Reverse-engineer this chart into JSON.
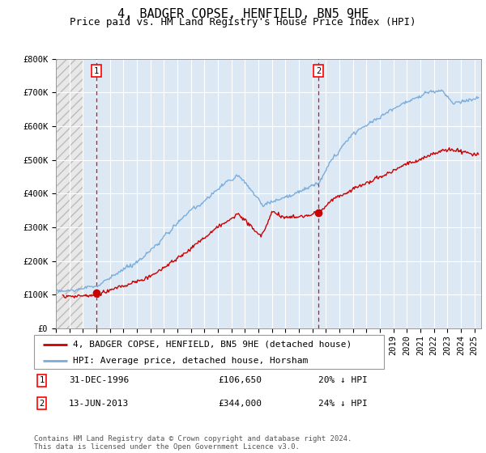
{
  "title": "4, BADGER COPSE, HENFIELD, BN5 9HE",
  "subtitle": "Price paid vs. HM Land Registry's House Price Index (HPI)",
  "xlim_start": 1994.0,
  "xlim_end": 2025.5,
  "ylim": [
    0,
    800000
  ],
  "yticks": [
    0,
    100000,
    200000,
    300000,
    400000,
    500000,
    600000,
    700000,
    800000
  ],
  "ytick_labels": [
    "£0",
    "£100K",
    "£200K",
    "£300K",
    "£400K",
    "£500K",
    "£600K",
    "£700K",
    "£800K"
  ],
  "background_color": "#dce9f5",
  "hatch_end_year": 1996.0,
  "sale1_year": 1996.99,
  "sale1_price": 106650,
  "sale2_year": 2013.45,
  "sale2_price": 344000,
  "red_line_color": "#cc0000",
  "blue_line_color": "#7aaddc",
  "legend_label1": "4, BADGER COPSE, HENFIELD, BN5 9HE (detached house)",
  "legend_label2": "HPI: Average price, detached house, Horsham",
  "sale1_date": "31-DEC-1996",
  "sale1_pct": "20% ↓ HPI",
  "sale2_date": "13-JUN-2013",
  "sale2_pct": "24% ↓ HPI",
  "footnote": "Contains HM Land Registry data © Crown copyright and database right 2024.\nThis data is licensed under the Open Government Licence v3.0.",
  "title_fontsize": 11,
  "subtitle_fontsize": 9,
  "tick_fontsize": 7.5,
  "legend_fontsize": 8,
  "footnote_fontsize": 6.5
}
